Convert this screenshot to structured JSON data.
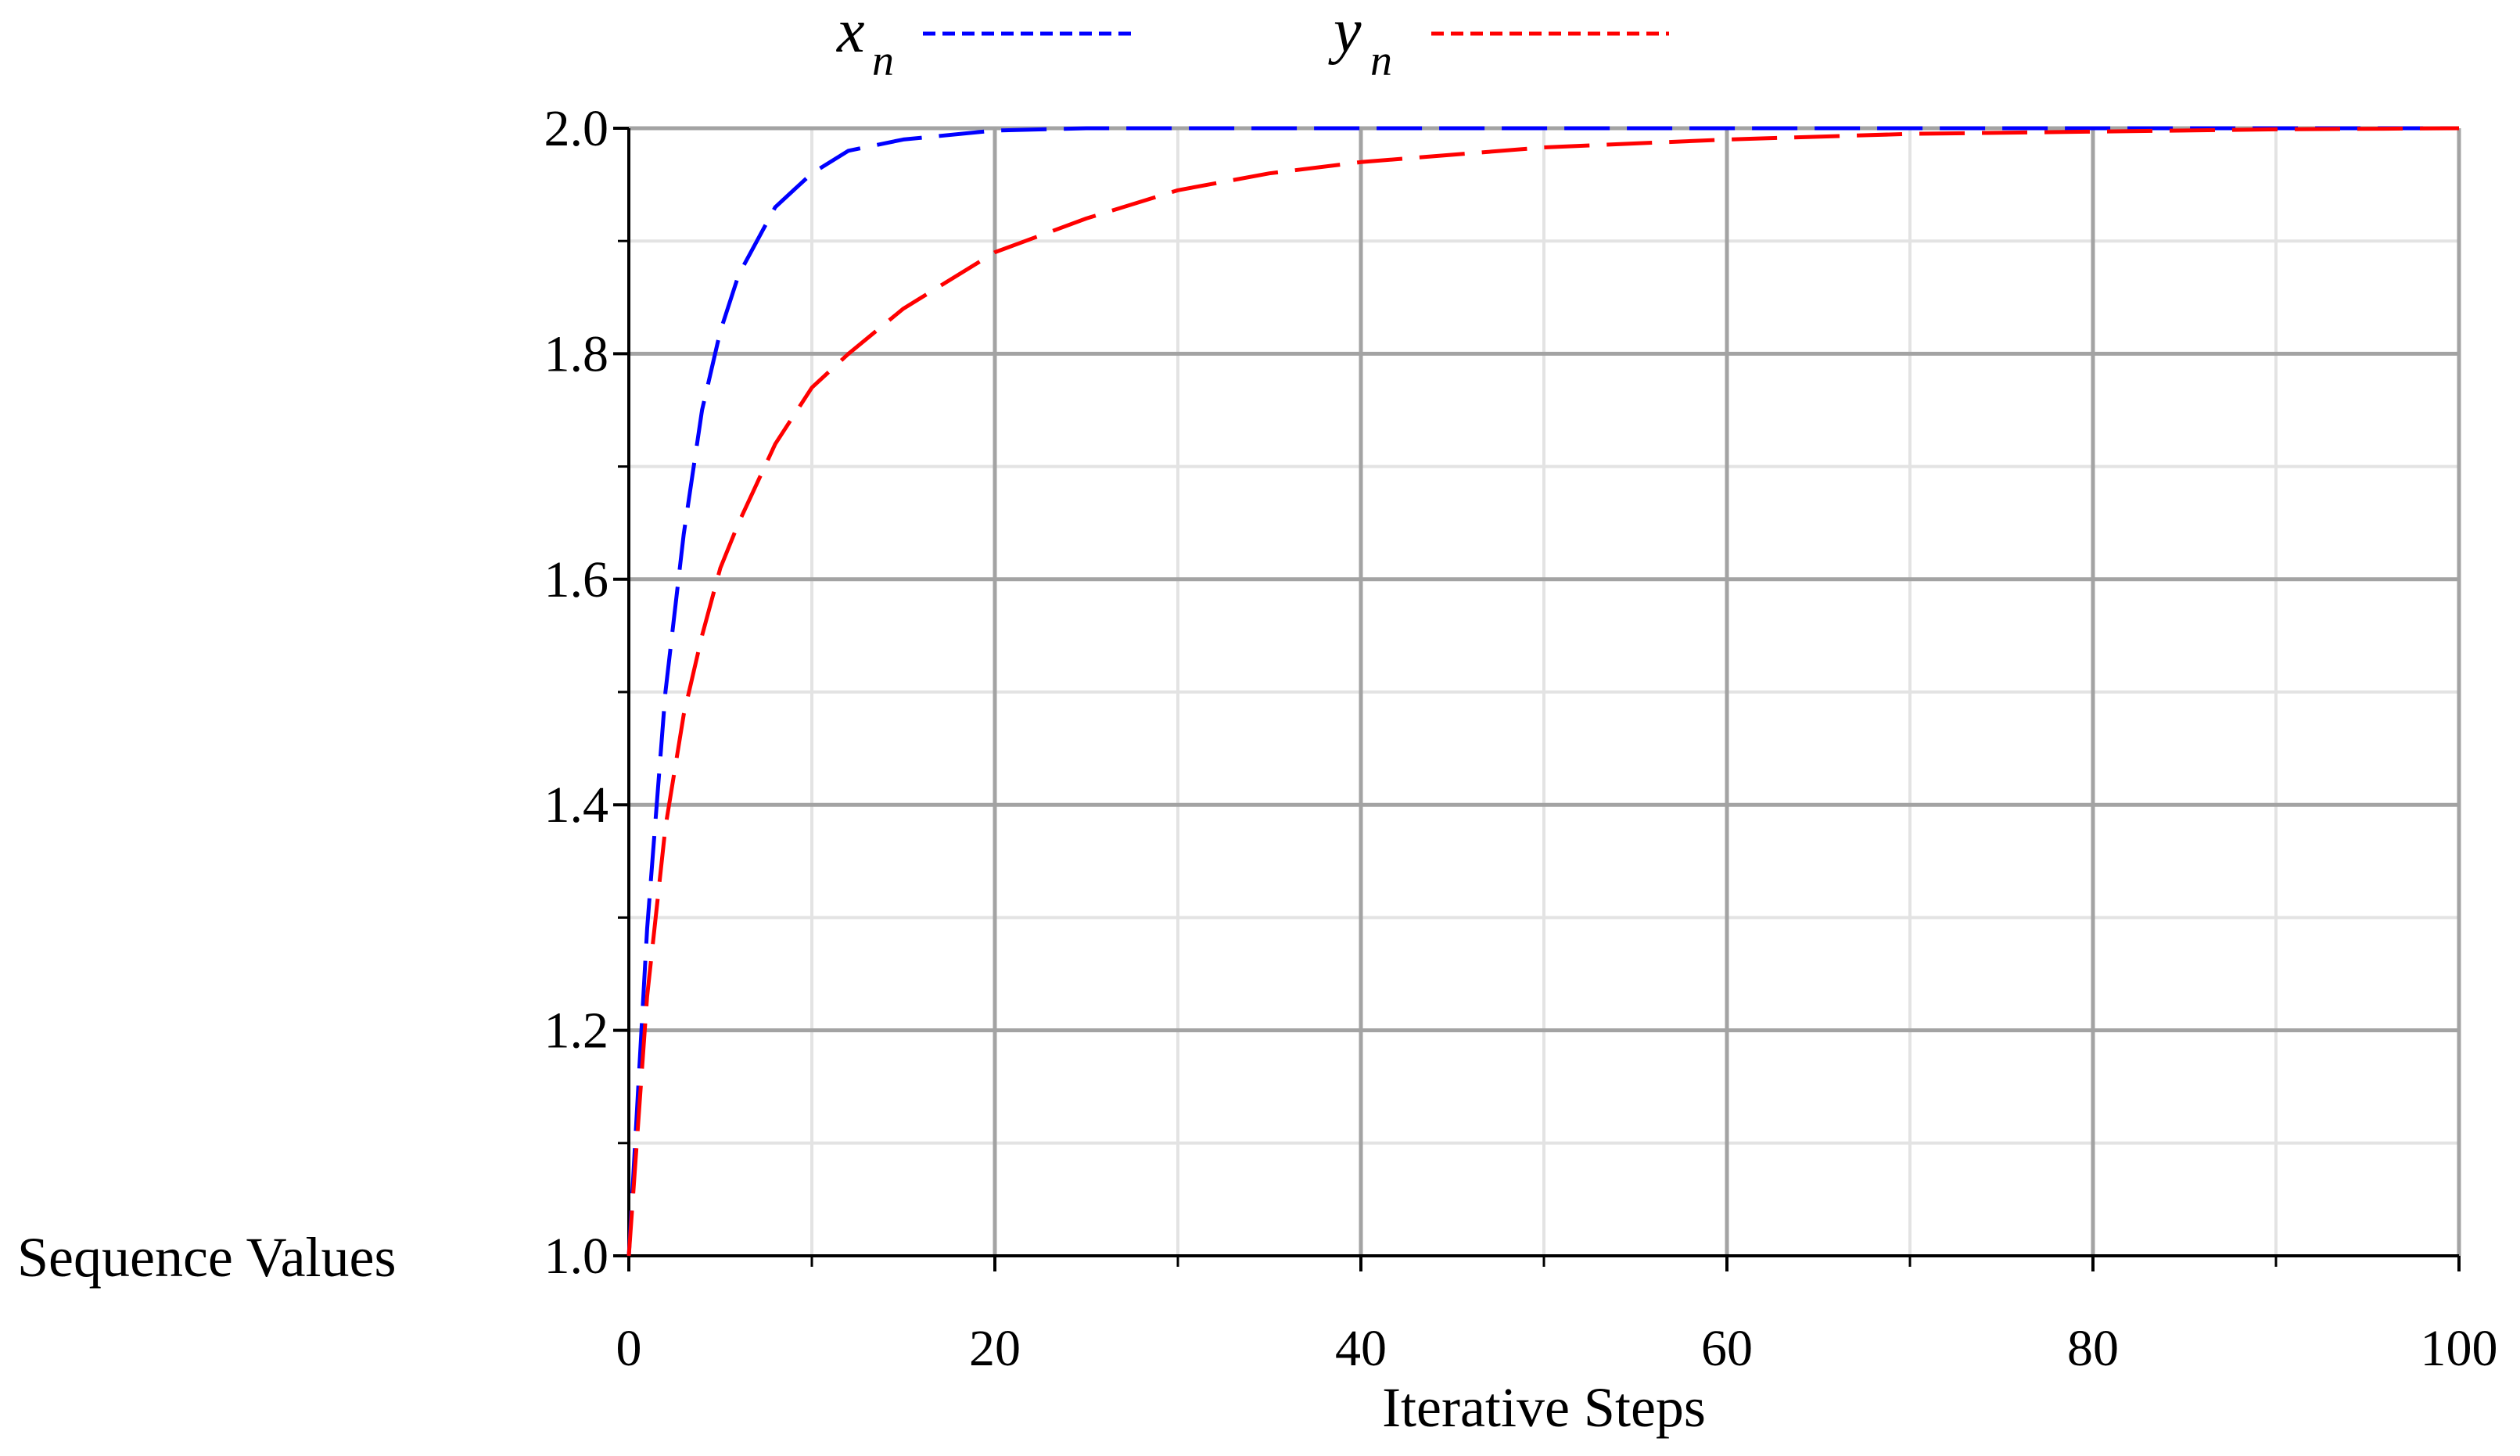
{
  "chart_data": {
    "type": "line",
    "xlabel": "Iterative Steps",
    "ylabel": "Sequence Values",
    "xlim": [
      0,
      100
    ],
    "ylim": [
      1.0,
      2.0
    ],
    "x_ticks": [
      0,
      20,
      40,
      60,
      80,
      100
    ],
    "x_tick_labels": [
      "0",
      "20",
      "40",
      "60",
      "80",
      "100"
    ],
    "y_ticks": [
      1.0,
      1.2,
      1.4,
      1.6,
      1.8,
      2.0
    ],
    "y_tick_labels": [
      "1.0",
      "1.2",
      "1.4",
      "1.6",
      "1.8",
      "2.0"
    ],
    "grid": true,
    "legend_position": "top",
    "series": [
      {
        "name": "x",
        "name_subscript": "n",
        "color": "#0000ff",
        "line_style": "dashed",
        "points": [
          [
            0,
            1.0
          ],
          [
            1,
            1.29
          ],
          [
            2,
            1.5
          ],
          [
            3,
            1.64
          ],
          [
            4,
            1.75
          ],
          [
            5,
            1.82
          ],
          [
            6,
            1.87
          ],
          [
            8,
            1.93
          ],
          [
            10,
            1.96
          ],
          [
            12,
            1.98
          ],
          [
            15,
            1.99
          ],
          [
            20,
            1.998
          ],
          [
            25,
            2.0
          ],
          [
            30,
            2.0
          ],
          [
            40,
            2.0
          ],
          [
            50,
            2.0
          ],
          [
            60,
            2.0
          ],
          [
            70,
            2.0
          ],
          [
            80,
            2.0
          ],
          [
            90,
            2.0
          ],
          [
            100,
            2.0
          ]
        ]
      },
      {
        "name": "y",
        "name_subscript": "n",
        "color": "#ff0000",
        "line_style": "dashed",
        "points": [
          [
            0,
            1.0
          ],
          [
            1,
            1.23
          ],
          [
            2,
            1.38
          ],
          [
            3,
            1.48
          ],
          [
            4,
            1.55
          ],
          [
            5,
            1.61
          ],
          [
            6,
            1.65
          ],
          [
            8,
            1.72
          ],
          [
            10,
            1.77
          ],
          [
            12,
            1.8
          ],
          [
            15,
            1.84
          ],
          [
            20,
            1.89
          ],
          [
            25,
            1.92
          ],
          [
            30,
            1.945
          ],
          [
            35,
            1.96
          ],
          [
            40,
            1.97
          ],
          [
            50,
            1.983
          ],
          [
            60,
            1.99
          ],
          [
            70,
            1.995
          ],
          [
            80,
            1.997
          ],
          [
            90,
            1.999
          ],
          [
            100,
            2.0
          ]
        ]
      }
    ]
  }
}
